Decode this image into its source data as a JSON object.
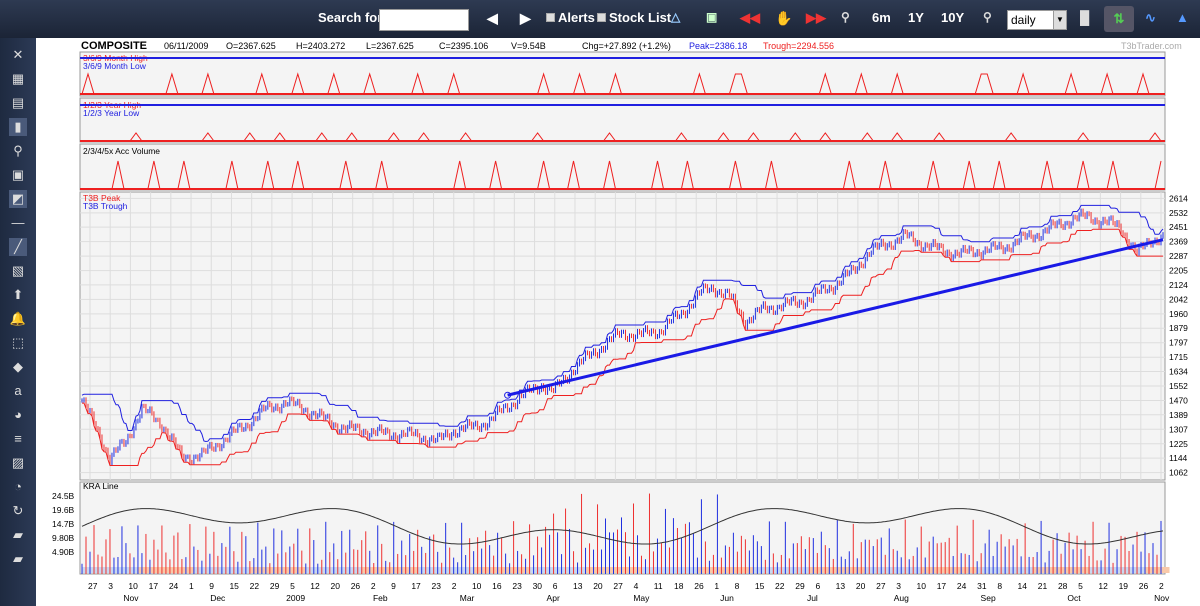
{
  "toolbar": {
    "search_label": "Search for:",
    "search_value": "",
    "alerts_label": "Alerts",
    "stock_list_label": "Stock List",
    "range_6m": "6m",
    "range_1y": "1Y",
    "range_10y": "10Y",
    "interval_value": "daily"
  },
  "info": {
    "symbol": "COMPOSITE",
    "date": "06/11/2009",
    "open": "O=2367.625",
    "high": "H=2403.272",
    "low": "L=2367.625",
    "close": "C=2395.106",
    "volume": "V=9.54B",
    "change": "Chg=+27.892 (+1.2%)",
    "peak": "Peak=2386.18",
    "trough": "Trough=2294.556",
    "brand": "T3bTrader.com"
  },
  "colors": {
    "peak": "#2020e0",
    "trough": "#ee2020",
    "trendline": "#1a1ae6",
    "up_candle": "#1f2fe0",
    "down_candle": "#ee3030"
  },
  "sidebar_icons": [
    "delete-indicator-icon",
    "grid-icon",
    "compare-icon",
    "candles-icon",
    "zoom-icon",
    "save-icon",
    "chart-picture-icon",
    "horizontal-line-icon",
    "trend-line-icon",
    "parallel-lines-icon",
    "up-arrow-icon",
    "alert-bell-icon",
    "selection-box-icon",
    "fibonacci-icon",
    "text-abc-icon",
    "color-palette-icon",
    "list-icon",
    "draw-tools-icon",
    "speed-icon",
    "refresh-icon",
    "sector-icon",
    "sector-icon-2"
  ],
  "chart_data": [
    {
      "type": "line",
      "title": "3/6/9 Month High / 3/6/9 Month Low",
      "legend": [
        "3/6/9 Month High",
        "3/6/9 Month Low"
      ]
    },
    {
      "type": "line",
      "title": "1/2/3 Year High / 1/2/3 Year Low",
      "legend": [
        "1/2/3 Year High",
        "1/2/3 Year Low"
      ]
    },
    {
      "type": "line",
      "title": "2/3/4/5x Acc Volume",
      "legend": [
        "2/3/4/5x Acc Volume"
      ]
    },
    {
      "type": "line",
      "title": "COMPOSITE daily",
      "legend": [
        "T3B Peak",
        "T3B Trough"
      ],
      "y_ticks": [
        2614,
        2532,
        2451,
        2369,
        2287,
        2205,
        2124,
        2042,
        1960,
        1879,
        1797,
        1715,
        1634,
        1552,
        1470,
        1389,
        1307,
        1225,
        1144,
        1062
      ],
      "ylim": [
        1020,
        2650
      ],
      "grid": true,
      "price_path": [
        [
          0,
          1470
        ],
        [
          8,
          1300
        ],
        [
          14,
          1140
        ],
        [
          22,
          1240
        ],
        [
          30,
          1420
        ],
        [
          40,
          1340
        ],
        [
          50,
          1150
        ],
        [
          60,
          1160
        ],
        [
          70,
          1240
        ],
        [
          82,
          1330
        ],
        [
          92,
          1420
        ],
        [
          102,
          1460
        ],
        [
          112,
          1420
        ],
        [
          122,
          1360
        ],
        [
          132,
          1310
        ],
        [
          142,
          1300
        ],
        [
          152,
          1280
        ],
        [
          162,
          1280
        ],
        [
          172,
          1260
        ],
        [
          178,
          1240
        ],
        [
          186,
          1300
        ],
        [
          196,
          1320
        ],
        [
          205,
          1360
        ],
        [
          212,
          1430
        ],
        [
          220,
          1490
        ],
        [
          230,
          1560
        ],
        [
          236,
          1520
        ],
        [
          246,
          1650
        ],
        [
          255,
          1730
        ],
        [
          262,
          1790
        ],
        [
          270,
          1850
        ],
        [
          280,
          1840
        ],
        [
          290,
          1870
        ],
        [
          300,
          1960
        ],
        [
          310,
          2080
        ],
        [
          316,
          2110
        ],
        [
          324,
          2060
        ],
        [
          332,
          1920
        ],
        [
          340,
          1980
        ],
        [
          350,
          2010
        ],
        [
          358,
          2020
        ],
        [
          366,
          2060
        ],
        [
          376,
          2120
        ],
        [
          386,
          2200
        ],
        [
          394,
          2310
        ],
        [
          402,
          2350
        ],
        [
          412,
          2400
        ],
        [
          420,
          2360
        ],
        [
          430,
          2320
        ],
        [
          440,
          2300
        ],
        [
          450,
          2320
        ],
        [
          460,
          2330
        ],
        [
          470,
          2380
        ],
        [
          480,
          2420
        ],
        [
          490,
          2470
        ],
        [
          496,
          2500
        ],
        [
          504,
          2510
        ],
        [
          512,
          2480
        ],
        [
          520,
          2450
        ],
        [
          528,
          2300
        ],
        [
          535,
          2380
        ],
        [
          541,
          2395
        ]
      ],
      "trend_line": {
        "x": [
          213,
          541
        ],
        "y": [
          1500,
          2380
        ]
      },
      "x_tick_labels": [
        "27",
        "3",
        "10",
        "17",
        "24",
        "1",
        "9",
        "15",
        "22",
        "29",
        "5",
        "12",
        "20",
        "26",
        "2",
        "9",
        "17",
        "23",
        "2",
        "10",
        "16",
        "23",
        "30",
        "6",
        "13",
        "20",
        "27",
        "4",
        "11",
        "18",
        "26",
        "1",
        "8",
        "15",
        "22",
        "29",
        "6",
        "13",
        "20",
        "27",
        "3",
        "10",
        "17",
        "24",
        "31",
        "8",
        "14",
        "21",
        "28",
        "5",
        "12",
        "19",
        "26",
        "2"
      ],
      "x_month_labels": [
        "Nov",
        "Dec",
        "2009",
        "Feb",
        "Mar",
        "Apr",
        "May",
        "Jun",
        "Jul",
        "Aug",
        "Sep",
        "Oct",
        "Nov"
      ]
    },
    {
      "type": "bar",
      "title": "KRA Line",
      "legend": [
        "KRA Line"
      ],
      "y_ticks": [
        "24.5B",
        "19.6B",
        "14.7B",
        "9.80B",
        "4.90B"
      ],
      "ylim": [
        0,
        27
      ]
    }
  ]
}
